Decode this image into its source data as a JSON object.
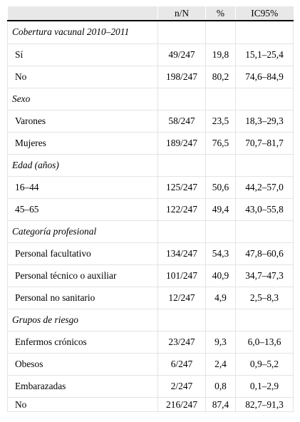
{
  "table": {
    "headers": [
      "",
      "n/N",
      "%",
      "IC95%"
    ],
    "rows": [
      {
        "type": "section",
        "label": "Cobertura vacunal 2010–2011"
      },
      {
        "type": "data",
        "label": "Sí",
        "n": "49/247",
        "pct": "19,8",
        "ci": "15,1–25,4"
      },
      {
        "type": "data",
        "label": "No",
        "n": "198/247",
        "pct": "80,2",
        "ci": "74,6–84,9"
      },
      {
        "type": "section",
        "label": "Sexo"
      },
      {
        "type": "data",
        "label": "Varones",
        "n": "58/247",
        "pct": "23,5",
        "ci": "18,3–29,3"
      },
      {
        "type": "data",
        "label": "Mujeres",
        "n": "189/247",
        "pct": "76,5",
        "ci": "70,7–81,7"
      },
      {
        "type": "section",
        "label": "Edad (años)"
      },
      {
        "type": "data",
        "label": "16–44",
        "n": "125/247",
        "pct": "50,6",
        "ci": "44,2–57,0"
      },
      {
        "type": "data",
        "label": "45–65",
        "n": "122/247",
        "pct": "49,4",
        "ci": "43,0–55,8"
      },
      {
        "type": "section",
        "label": "Categoría profesional"
      },
      {
        "type": "data",
        "label": "Personal facultativo",
        "n": "134/247",
        "pct": "54,3",
        "ci": "47,8–60,6"
      },
      {
        "type": "data",
        "label": "Personal técnico o auxiliar",
        "n": "101/247",
        "pct": "40,9",
        "ci": "34,7–47,3"
      },
      {
        "type": "data",
        "label": "Personal no sanitario",
        "n": "12/247",
        "pct": "4,9",
        "ci": "2,5–8,3"
      },
      {
        "type": "section",
        "label": "Grupos de riesgo"
      },
      {
        "type": "data",
        "label": "Enfermos crónicos",
        "n": "23/247",
        "pct": "9,3",
        "ci": "6,0–13,6"
      },
      {
        "type": "data",
        "label": "Obesos",
        "n": "6/247",
        "pct": "2,4",
        "ci": "0,9–5,2"
      },
      {
        "type": "data",
        "label": "Embarazadas",
        "n": "2/247",
        "pct": "0,8",
        "ci": "0,1–2,9"
      },
      {
        "type": "data",
        "label": "No",
        "n": "216/247",
        "pct": "87,4",
        "ci": "82,7–91,3"
      }
    ]
  }
}
